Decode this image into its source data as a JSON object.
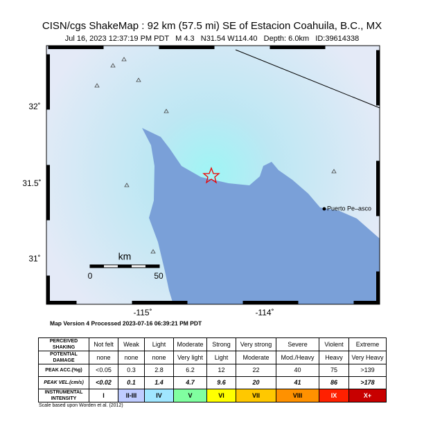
{
  "header": {
    "title": "CISN/cgs ShakeMap : 92 km (57.5 mi) SE of Estacion Coahuila, B.C., MX",
    "subtitle": "Jul 16, 2023 12:37:19 PM PDT   M 4.3   N31.54 W114.40   Depth: 6.0km   ID:39614338"
  },
  "map": {
    "lat_labels": [
      "32˚",
      "31.5˚",
      "31˚"
    ],
    "lon_labels": [
      "-115˚",
      "-114˚"
    ],
    "scale": {
      "unit": "km",
      "ticks": [
        "0",
        "50"
      ]
    },
    "place": "Puerto Pe–asco"
  },
  "version": "Map Version 4 Processed 2023-07-16 06:39:21 PM PDT",
  "table": {
    "rows": [
      [
        "PERCEIVED SHAKING",
        "Not felt",
        "Weak",
        "Light",
        "Moderate",
        "Strong",
        "Very strong",
        "Severe",
        "Violent",
        "Extreme"
      ],
      [
        "POTENTIAL DAMAGE",
        "none",
        "none",
        "none",
        "Very light",
        "Light",
        "Moderate",
        "Mod./Heavy",
        "Heavy",
        "Very Heavy"
      ],
      [
        "PEAK ACC.(%g)",
        "<0.05",
        "0.3",
        "2.8",
        "6.2",
        "12",
        "22",
        "40",
        "75",
        ">139"
      ],
      [
        "PEAK VEL.(cm/s)",
        "<0.02",
        "0.1",
        "1.4",
        "4.7",
        "9.6",
        "20",
        "41",
        "86",
        ">178"
      ],
      [
        "INSTRUMENTAL INTENSITY",
        "I",
        "II-III",
        "IV",
        "V",
        "VI",
        "VII",
        "VIII",
        "IX",
        "X+"
      ]
    ]
  },
  "footnote": "Scale based upon Worden et al. (2012)"
}
